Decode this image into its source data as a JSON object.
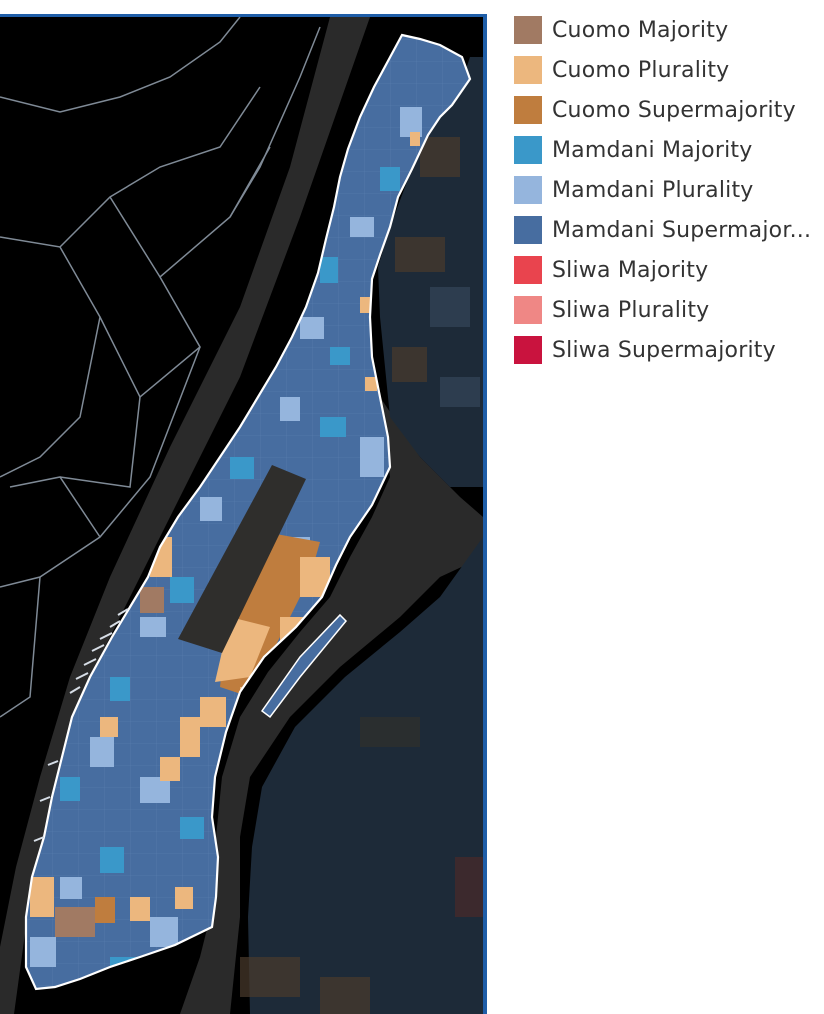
{
  "legend": {
    "items": [
      {
        "label": "Cuomo Majority",
        "color": "#a17a63"
      },
      {
        "label": "Cuomo Plurality",
        "color": "#ecb77e"
      },
      {
        "label": "Cuomo Supermajority",
        "color": "#bf7d3e"
      },
      {
        "label": "Mamdani Majority",
        "color": "#3a98c9"
      },
      {
        "label": "Mamdani Plurality",
        "color": "#95b5dd"
      },
      {
        "label": "Mamdani Supermajor...",
        "color": "#476da0"
      },
      {
        "label": "Sliwa Majority",
        "color": "#e9444e"
      },
      {
        "label": "Sliwa Plurality",
        "color": "#ef8785"
      },
      {
        "label": "Sliwa Supermajority",
        "color": "#c9133e"
      }
    ]
  },
  "map": {
    "background": "#000000",
    "water": "#2a2a2a",
    "park": "#2f2e2c",
    "outline": "#ffffff",
    "neighbor_boroughs": "#1d2a38",
    "frame_border": "#1f5ea8"
  }
}
